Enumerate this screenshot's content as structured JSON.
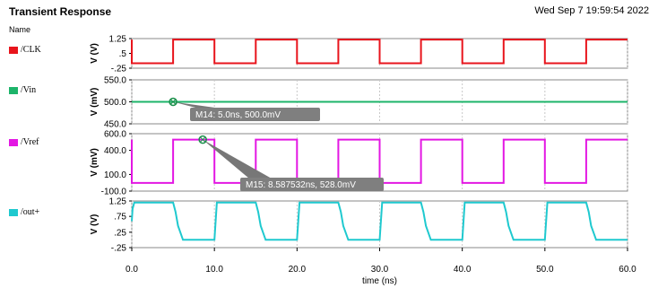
{
  "header": {
    "title": "Transient Response",
    "datetime": "Wed Sep 7 19:59:54 2022"
  },
  "name_column_label": "Name",
  "chart_data": {
    "type": "line",
    "xlabel": "time (ns)",
    "xlim": [
      0,
      60
    ],
    "x_ticks": [
      "0.0",
      "10.0",
      "20.0",
      "30.0",
      "40.0",
      "50.0",
      "60.0"
    ],
    "panels": [
      {
        "name": "/CLK",
        "color": "#e8141c",
        "ylabel": "V (V)",
        "y_ticks": [
          "1.25",
          ".5",
          "-.25"
        ],
        "ylim": [
          -0.25,
          1.25
        ],
        "x": [
          0,
          0,
          5,
          5,
          10,
          10,
          15,
          15,
          20,
          20,
          25,
          25,
          30,
          30,
          35,
          35,
          40,
          40,
          45,
          45,
          50,
          50,
          55,
          55,
          60
        ],
        "y": [
          1.2,
          0,
          0,
          1.2,
          1.2,
          0,
          0,
          1.2,
          1.2,
          0,
          0,
          1.2,
          1.2,
          0,
          0,
          1.2,
          1.2,
          0,
          0,
          1.2,
          1.2,
          0,
          0,
          1.2,
          1.2
        ]
      },
      {
        "name": "/Vin",
        "color": "#1db46a",
        "ylabel": "V (mV)",
        "y_ticks": [
          "550.0",
          "500.0",
          "450.0"
        ],
        "ylim": [
          450,
          550
        ],
        "x": [
          0,
          60
        ],
        "y": [
          500,
          500
        ]
      },
      {
        "name": "/Vref",
        "color": "#e317e3",
        "ylabel": "V (mV)",
        "y_ticks": [
          "600.0",
          "400.0",
          "100.0",
          "-100.0"
        ],
        "ylim": [
          -100,
          600
        ],
        "x": [
          0,
          0,
          5,
          5,
          10,
          10,
          15,
          15,
          20,
          20,
          25,
          25,
          30,
          30,
          35,
          35,
          40,
          40,
          45,
          45,
          50,
          50,
          55,
          55,
          60
        ],
        "y": [
          528,
          0,
          0,
          528,
          528,
          0,
          0,
          528,
          528,
          0,
          0,
          528,
          528,
          0,
          0,
          528,
          528,
          0,
          0,
          528,
          528,
          0,
          0,
          528,
          528
        ]
      },
      {
        "name": "/out+",
        "color": "#1fc9cf",
        "ylabel": "V (V)",
        "y_ticks": [
          "1.25",
          ".75",
          ".25",
          "-.25"
        ],
        "ylim": [
          -0.25,
          1.25
        ],
        "x": [
          0,
          0.1,
          0.3,
          5,
          5.3,
          5.6,
          6.2,
          10,
          10.3,
          15,
          15.3,
          15.6,
          16.2,
          20,
          20.3,
          25,
          25.3,
          25.6,
          26.2,
          30,
          30.3,
          35,
          35.3,
          35.6,
          36.2,
          40,
          40.3,
          45,
          45.3,
          45.6,
          46.2,
          50,
          50.3,
          55,
          55.3,
          55.6,
          56.2,
          60
        ],
        "y": [
          0.6,
          1.0,
          1.2,
          1.2,
          0.9,
          0.45,
          0,
          0,
          1.2,
          1.2,
          0.9,
          0.45,
          0,
          0,
          1.2,
          1.2,
          0.9,
          0.45,
          0,
          0,
          1.2,
          1.2,
          0.9,
          0.45,
          0,
          0,
          1.2,
          1.2,
          0.9,
          0.45,
          0,
          0,
          1.2,
          1.2,
          0.9,
          0.45,
          0,
          0
        ]
      }
    ],
    "markers": [
      {
        "panel": 1,
        "x": 5.0,
        "y": 500,
        "label": "M14: 5.0ns, 500.0mV"
      },
      {
        "panel": 2,
        "x": 8.587532,
        "y": 528,
        "label": "M15: 8.587532ns, 528.0mV"
      }
    ]
  }
}
